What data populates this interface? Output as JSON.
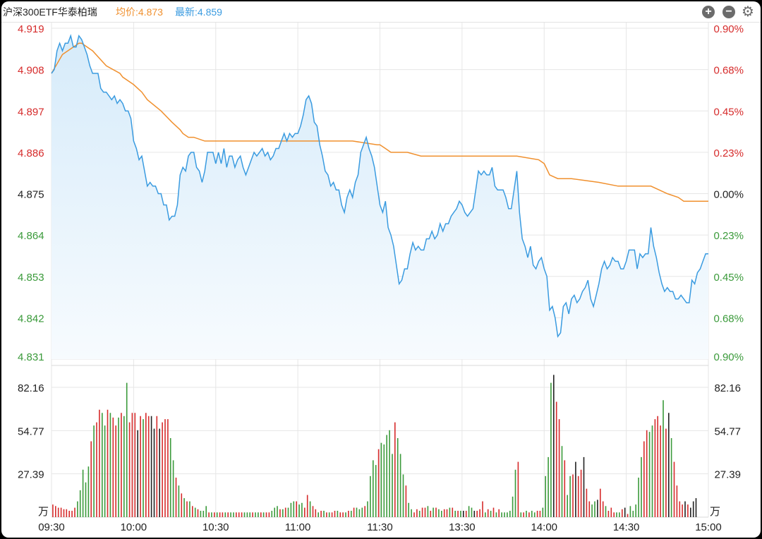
{
  "header": {
    "name": "沪深300ETF华泰柏瑞",
    "avg_label": "均价:4.873",
    "latest_label": "最新:4.859"
  },
  "toolbar": {
    "zoom_in_symbol": "+",
    "zoom_out_symbol": "−",
    "settings_symbol": "⚙",
    "zoom_in_icon": "plus-circle-icon",
    "zoom_out_icon": "minus-circle-icon",
    "settings_icon": "gear-icon"
  },
  "colors": {
    "price_line": "#3a9be0",
    "avg_line": "#f0902e",
    "up": "#d62b2b",
    "down": "#3a9a3a",
    "flat": "#222222",
    "grid": "#e6e6e6"
  },
  "chart_data": {
    "type": "line",
    "x_ticks": [
      "09:30",
      "10:00",
      "10:30",
      "11:00",
      "11:30",
      "13:30",
      "14:00",
      "14:30",
      "15:00"
    ],
    "price_axis": {
      "ylim": [
        4.831,
        4.919
      ],
      "ticks": [
        "4.919",
        "4.908",
        "4.897",
        "4.886",
        "4.875",
        "4.864",
        "4.853",
        "4.842",
        "4.831"
      ],
      "prev_close": 4.875
    },
    "percent_axis": {
      "ticks": [
        "0.90%",
        "0.68%",
        "0.45%",
        "0.23%",
        "0.00%",
        "0.23%",
        "0.45%",
        "0.68%",
        "0.90%"
      ]
    },
    "volume_axis": {
      "ticks": [
        "82.16",
        "54.77",
        "27.39"
      ],
      "unit": "万"
    },
    "series": [
      {
        "name": "最新",
        "minutes": [
          0,
          1,
          2,
          3,
          4,
          5,
          6,
          7,
          8,
          9,
          10,
          11,
          12,
          13,
          14,
          15,
          16,
          17,
          18,
          19,
          20,
          21,
          22,
          23,
          24,
          25,
          26,
          27,
          28,
          29,
          30,
          31,
          32,
          33,
          34,
          35,
          36,
          37,
          38,
          39,
          40,
          41,
          42,
          43,
          44,
          45,
          46,
          47,
          48,
          49,
          50,
          51,
          52,
          53,
          54,
          55,
          56,
          57,
          58,
          59,
          60,
          61,
          62,
          63,
          64,
          65,
          66,
          67,
          68,
          69,
          70,
          71,
          72,
          73,
          74,
          75,
          76,
          77,
          78,
          79,
          80,
          81,
          82,
          83,
          84,
          85,
          86,
          87,
          88,
          89,
          90,
          91,
          92,
          93,
          94,
          95,
          96,
          97,
          98,
          99,
          100,
          101,
          102,
          103,
          104,
          105,
          106,
          107,
          108,
          109,
          110,
          111,
          112,
          113,
          114,
          115,
          116,
          117,
          118,
          119,
          120,
          121,
          122,
          123,
          124,
          125,
          126,
          127,
          128,
          129,
          130,
          131,
          132,
          133,
          134,
          135,
          136,
          137,
          138,
          139,
          140,
          141,
          142,
          143,
          144,
          145,
          146,
          147,
          148,
          149,
          150,
          151,
          152,
          153,
          154,
          155,
          156,
          157,
          158,
          159,
          160,
          161,
          162,
          163,
          164,
          165,
          166,
          167,
          168,
          169,
          170,
          171,
          172,
          173,
          174,
          175,
          176,
          177,
          178,
          179,
          180,
          181,
          182,
          183,
          184,
          185,
          186,
          187,
          188,
          189,
          190,
          191,
          192,
          193,
          194,
          195,
          196,
          197,
          198,
          199,
          200,
          201,
          202,
          203,
          204,
          205,
          206,
          207,
          208,
          209,
          210,
          211,
          212,
          213,
          214,
          215,
          216,
          217,
          218,
          219,
          220,
          221,
          222,
          223,
          224,
          225,
          226,
          227,
          228,
          229,
          230,
          231,
          232,
          233,
          234,
          235,
          236,
          237,
          238,
          239,
          240
        ],
        "values": [
          4.907,
          4.908,
          4.913,
          4.915,
          4.913,
          4.915,
          4.915,
          4.917,
          4.914,
          4.914,
          4.917,
          4.916,
          4.914,
          4.912,
          4.909,
          4.907,
          4.907,
          4.907,
          4.903,
          4.902,
          4.902,
          4.901,
          4.9,
          4.901,
          4.899,
          4.9,
          4.899,
          4.897,
          4.897,
          4.895,
          4.889,
          4.887,
          4.884,
          4.885,
          4.881,
          4.877,
          4.878,
          4.877,
          4.877,
          4.875,
          4.875,
          4.872,
          4.872,
          4.868,
          4.869,
          4.869,
          4.872,
          4.88,
          4.882,
          4.881,
          4.885,
          4.886,
          4.886,
          4.882,
          4.881,
          4.878,
          4.881,
          4.886,
          4.886,
          4.886,
          4.883,
          4.886,
          4.883,
          4.887,
          4.882,
          4.885,
          4.885,
          4.882,
          4.884,
          4.885,
          4.882,
          4.88,
          4.882,
          4.884,
          4.886,
          4.885,
          4.886,
          4.887,
          4.885,
          4.886,
          4.884,
          4.885,
          4.887,
          4.887,
          4.889,
          4.891,
          4.889,
          4.891,
          4.89,
          4.891,
          4.891,
          4.893,
          4.896,
          4.9,
          4.901,
          4.899,
          4.894,
          4.893,
          4.888,
          4.885,
          4.881,
          4.88,
          4.877,
          4.878,
          4.876,
          4.876,
          4.872,
          4.87,
          4.874,
          4.876,
          4.874,
          4.878,
          4.88,
          4.886,
          4.888,
          4.89,
          4.887,
          4.885,
          4.882,
          4.877,
          4.872,
          4.87,
          4.873,
          4.866,
          4.864,
          4.861,
          4.856,
          4.851,
          4.852,
          4.855,
          4.855,
          4.859,
          4.862,
          4.86,
          4.861,
          4.86,
          4.86,
          4.863,
          4.863,
          4.865,
          4.863,
          4.864,
          4.867,
          4.865,
          4.867,
          4.867,
          4.869,
          4.87,
          4.871,
          4.873,
          4.872,
          4.87,
          4.869,
          4.87,
          4.871,
          4.876,
          4.881,
          4.88,
          4.881,
          4.88,
          4.88,
          4.882,
          4.877,
          4.876,
          4.876,
          4.876,
          4.874,
          4.871,
          4.871,
          4.876,
          4.881,
          4.87,
          4.863,
          4.861,
          4.858,
          4.861,
          4.856,
          4.855,
          4.857,
          4.858,
          4.855,
          4.853,
          4.844,
          4.845,
          4.842,
          4.837,
          4.838,
          4.845,
          4.846,
          4.843,
          4.847,
          4.848,
          4.846,
          4.847,
          4.849,
          4.85,
          4.852,
          4.847,
          4.845,
          4.848,
          4.851,
          4.855,
          4.857,
          4.855,
          4.856,
          4.858,
          4.857,
          4.857,
          4.855,
          4.855,
          4.857,
          4.86,
          4.86,
          4.86,
          4.855,
          4.859,
          4.858,
          4.859,
          4.859,
          4.866,
          4.861,
          4.858,
          4.854,
          4.851,
          4.849,
          4.85,
          4.849,
          4.849,
          4.847,
          4.847,
          4.848,
          4.847,
          4.846,
          4.846,
          4.852,
          4.851,
          4.854,
          4.855,
          4.857,
          4.859,
          4.859,
          4.859,
          4.859,
          4.859,
          4.859
        ]
      },
      {
        "name": "均价",
        "minutes": [
          0,
          4,
          8,
          10,
          11,
          15,
          20,
          25,
          26,
          30,
          33,
          35,
          40,
          44,
          47,
          48,
          50,
          52,
          56,
          60,
          70,
          80,
          90,
          95,
          100,
          110,
          119,
          120,
          122,
          124,
          126,
          128,
          130,
          135,
          140,
          150,
          160,
          165,
          170,
          178,
          180,
          182,
          185,
          190,
          200,
          207,
          215,
          219,
          222,
          225,
          229,
          231,
          240
        ],
        "values": [
          4.907,
          4.912,
          4.914,
          4.915,
          4.915,
          4.913,
          4.909,
          4.907,
          4.906,
          4.904,
          4.902,
          4.9,
          4.897,
          4.894,
          4.892,
          4.891,
          4.89,
          4.89,
          4.889,
          4.889,
          4.889,
          4.889,
          4.889,
          4.889,
          4.889,
          4.889,
          4.888,
          4.888,
          4.887,
          4.886,
          4.886,
          4.886,
          4.886,
          4.885,
          4.885,
          4.885,
          4.885,
          4.885,
          4.885,
          4.884,
          4.883,
          4.88,
          4.879,
          4.879,
          4.878,
          4.877,
          4.877,
          4.877,
          4.876,
          4.875,
          4.874,
          4.873,
          4.873
        ]
      }
    ],
    "volume": [
      8,
      7,
      6,
      6,
      5,
      5,
      4,
      4,
      6,
      10,
      17,
      30,
      22,
      32,
      48,
      58,
      60,
      68,
      66,
      58,
      68,
      66,
      63,
      58,
      63,
      66,
      64,
      85,
      60,
      66,
      66,
      55,
      64,
      62,
      66,
      64,
      64,
      56,
      64,
      56,
      60,
      62,
      62,
      50,
      36,
      25,
      20,
      15,
      12,
      10,
      10,
      7,
      6,
      5,
      4,
      4,
      7,
      3,
      3,
      3,
      3,
      3,
      3,
      3,
      3,
      3,
      3,
      3,
      3,
      3,
      3,
      3,
      3,
      3,
      3,
      3,
      3,
      3,
      3,
      3,
      4,
      6,
      7,
      5,
      5,
      6,
      6,
      9,
      10,
      10,
      8,
      9,
      6,
      14,
      10,
      7,
      5,
      3,
      4,
      4,
      3,
      3,
      3,
      4,
      4,
      3,
      3,
      3,
      4,
      4,
      6,
      6,
      5,
      6,
      7,
      10,
      26,
      36,
      33,
      43,
      47,
      46,
      52,
      55,
      40,
      60,
      50,
      40,
      27,
      20,
      9,
      5,
      3,
      5,
      4,
      6,
      6,
      7,
      4,
      6,
      6,
      5,
      4,
      5,
      5,
      6,
      6,
      4,
      4,
      4,
      4,
      4,
      7,
      6,
      4,
      4,
      5,
      10,
      3,
      5,
      4,
      6,
      3,
      5,
      3,
      3,
      3,
      4,
      13,
      30,
      35,
      3,
      3,
      4,
      3,
      4,
      3,
      4,
      4,
      6,
      26,
      38,
      85,
      90,
      73,
      62,
      45,
      36,
      14,
      26,
      27,
      35,
      26,
      30,
      38,
      18,
      10,
      8,
      10,
      11,
      18,
      10,
      7,
      4,
      6,
      3,
      3,
      3,
      5,
      6,
      2,
      7,
      4,
      8,
      25,
      38,
      48,
      55,
      54,
      58,
      62,
      64,
      58,
      74,
      56,
      66,
      50,
      35,
      20,
      10,
      8,
      10,
      8,
      6,
      10,
      12
    ],
    "volume_direction": [
      "up",
      "up",
      "up",
      "up",
      "up",
      "up",
      "up",
      "up",
      "up",
      "down",
      "down",
      "down",
      "down",
      "down",
      "up",
      "down",
      "up",
      "up",
      "down",
      "down",
      "up",
      "down",
      "up",
      "up",
      "down",
      "up",
      "down",
      "down",
      "up",
      "up",
      "up",
      "flat",
      "up",
      "down",
      "up",
      "up",
      "flat",
      "flat",
      "up",
      "flat",
      "up",
      "up",
      "up",
      "down",
      "down",
      "up",
      "down",
      "up",
      "down",
      "up",
      "down",
      "up",
      "down",
      "up",
      "down",
      "down",
      "down",
      "up",
      "down",
      "up",
      "down",
      "up",
      "up",
      "down",
      "up",
      "down",
      "down",
      "up",
      "up",
      "up",
      "down",
      "down",
      "down",
      "up",
      "down",
      "down",
      "up",
      "down",
      "up",
      "up",
      "down",
      "down",
      "down",
      "up",
      "down",
      "up",
      "down",
      "down",
      "down",
      "up",
      "down",
      "down",
      "up",
      "up",
      "down",
      "up",
      "up",
      "down",
      "up",
      "down",
      "up",
      "down",
      "up",
      "up",
      "down",
      "up",
      "up",
      "down",
      "up",
      "down",
      "up",
      "down",
      "down",
      "down",
      "up",
      "down",
      "down",
      "down",
      "down",
      "up",
      "down",
      "down",
      "down",
      "down",
      "down",
      "up",
      "down",
      "down",
      "down",
      "up",
      "down",
      "down",
      "up",
      "up",
      "down",
      "up",
      "up",
      "down",
      "up",
      "down",
      "up",
      "down",
      "down",
      "up",
      "up",
      "down",
      "up",
      "down",
      "up",
      "down",
      "flat",
      "up",
      "down",
      "down",
      "flat",
      "up",
      "up",
      "up",
      "down",
      "up",
      "down",
      "up",
      "down",
      "up",
      "down",
      "down",
      "down",
      "down",
      "down",
      "down",
      "up",
      "down",
      "up",
      "down",
      "up",
      "down",
      "down",
      "up",
      "up",
      "down",
      "down",
      "down",
      "down",
      "flat",
      "up",
      "up",
      "down",
      "up",
      "down",
      "down",
      "up",
      "flat",
      "up",
      "up",
      "flat",
      "up",
      "up",
      "down",
      "down",
      "flat",
      "up",
      "up",
      "down",
      "up",
      "up",
      "up",
      "down",
      "down",
      "up",
      "flat",
      "up",
      "down",
      "down",
      "down",
      "down",
      "down",
      "up",
      "up",
      "down",
      "down",
      "up",
      "up",
      "up",
      "down",
      "up",
      "flat",
      "down",
      "up",
      "up",
      "up",
      "up",
      "flat",
      "up",
      "flat",
      "flat"
    ]
  }
}
